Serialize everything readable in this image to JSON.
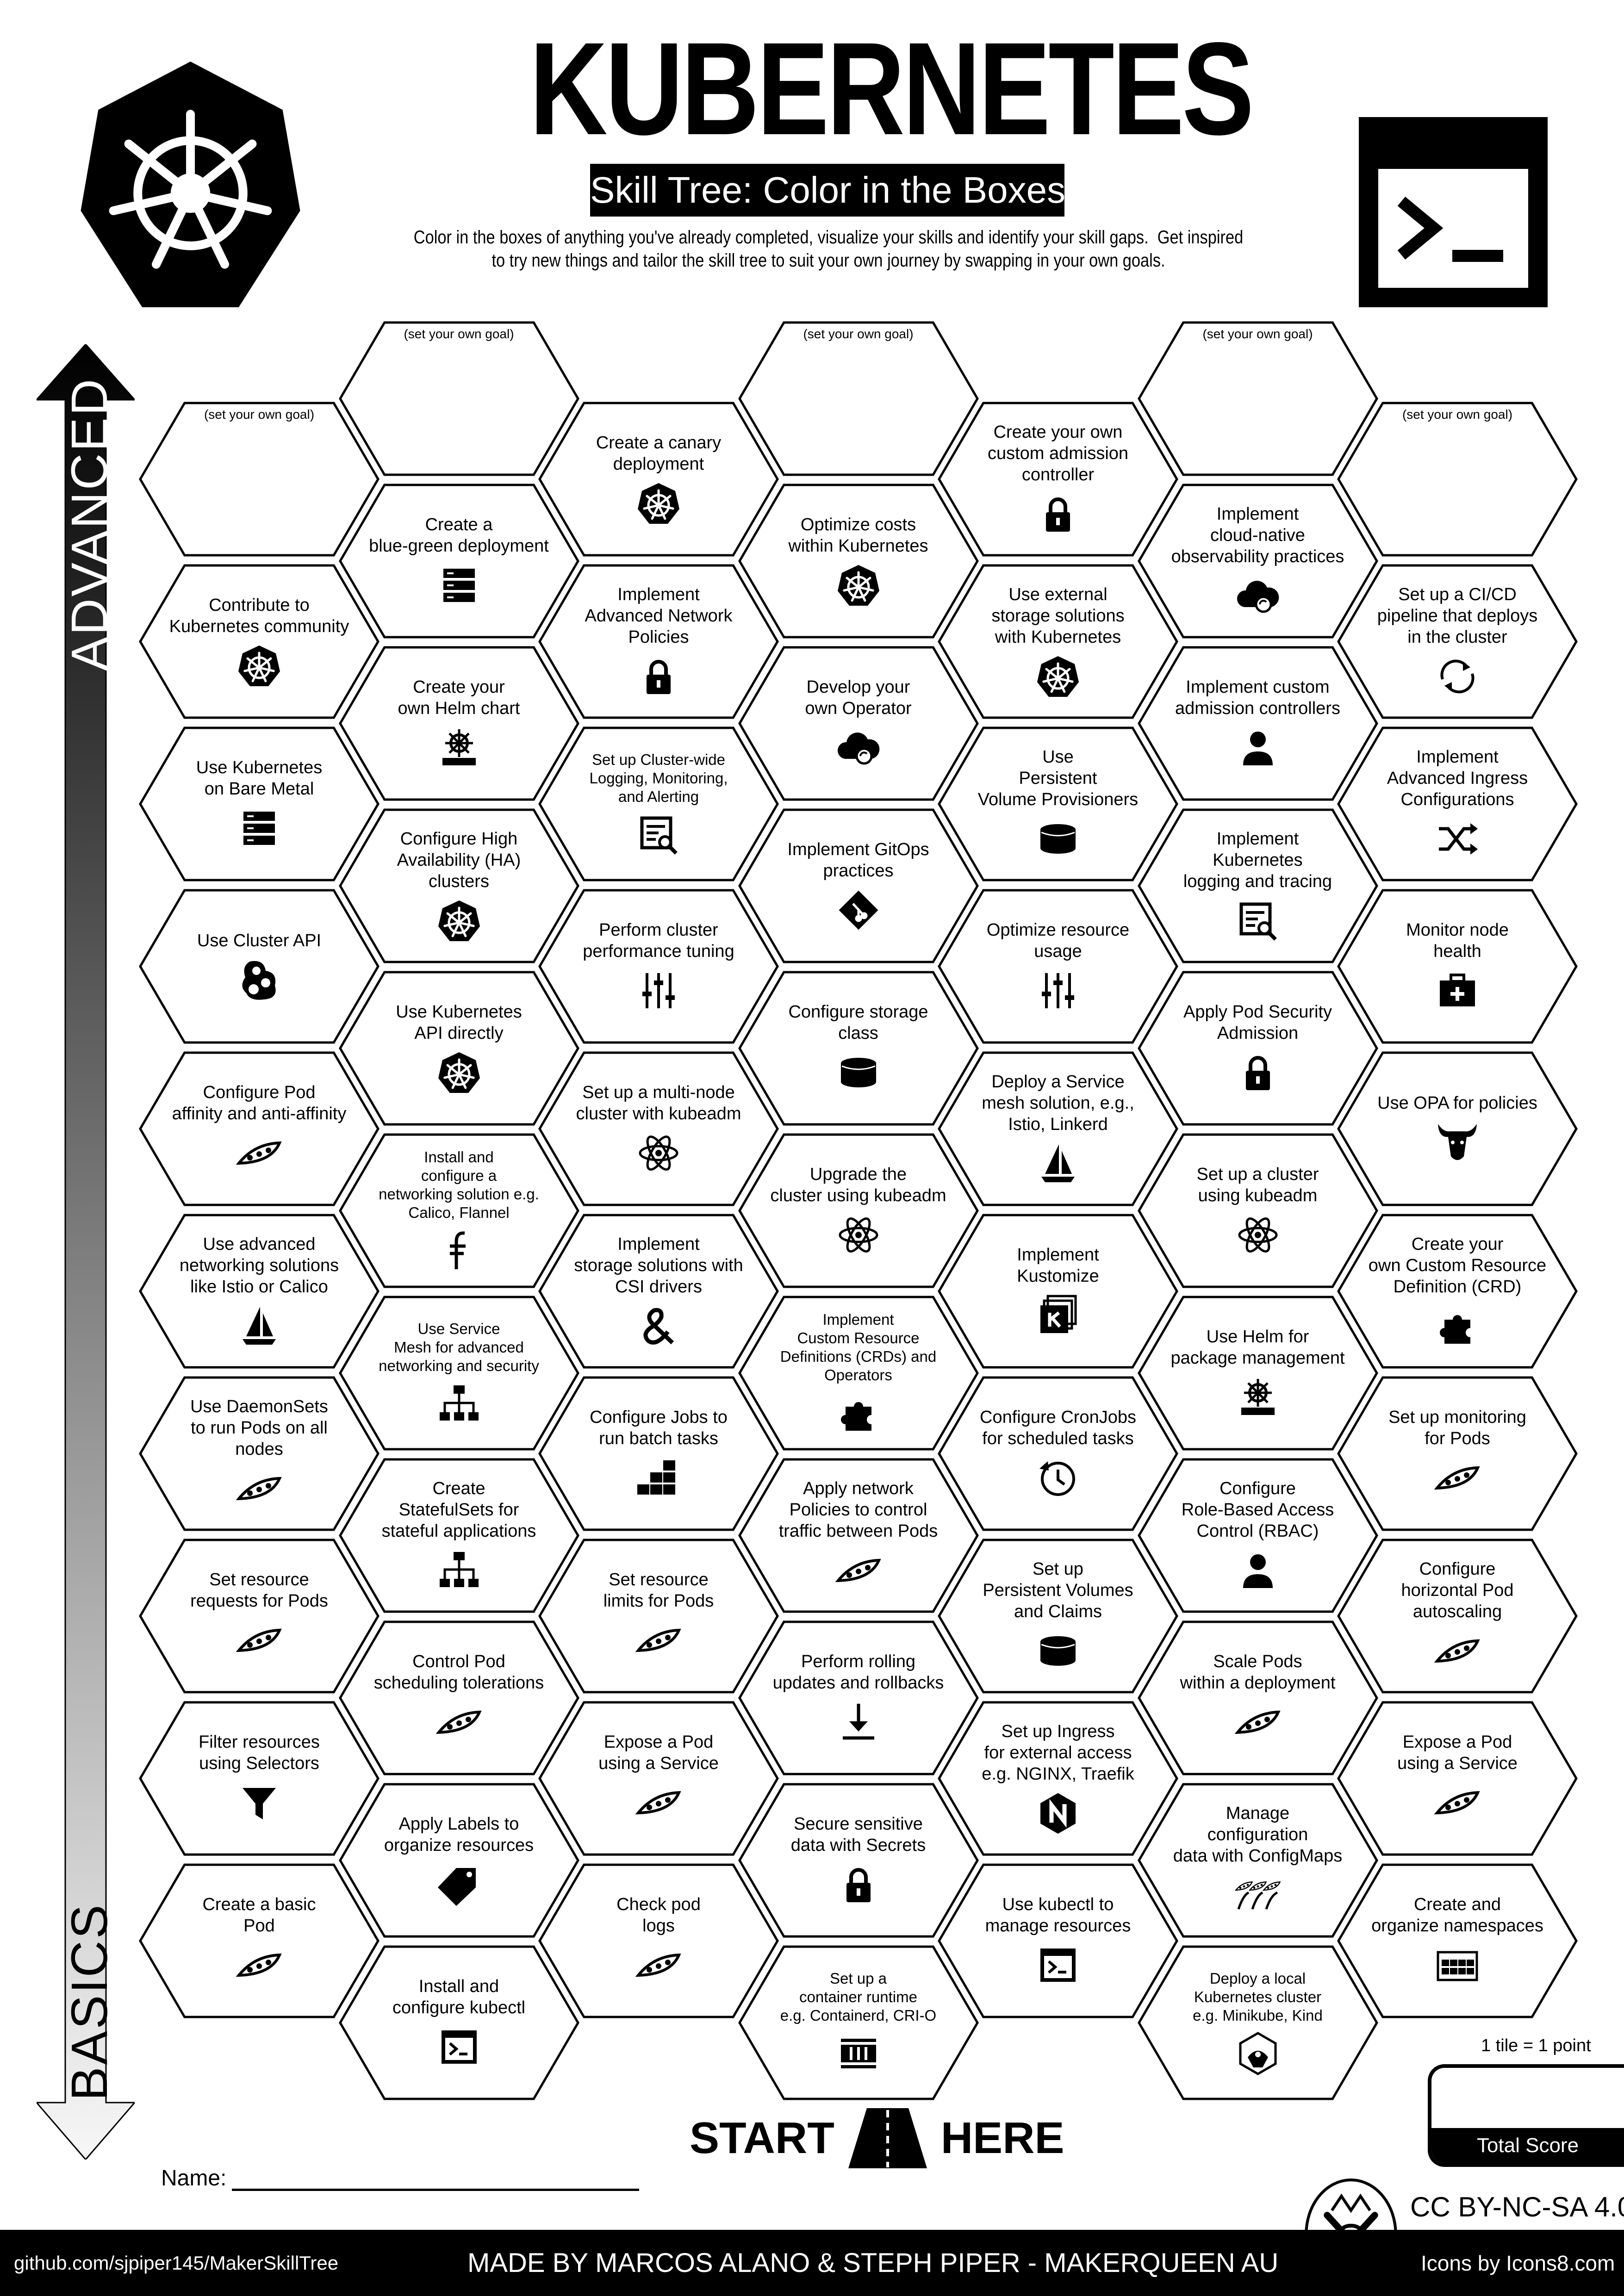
{
  "header": {
    "title": "KUBERNETES",
    "subtitle": "Skill Tree: Color in the Boxes",
    "description": "Color in the boxes of anything you've already completed, visualize your skills and identify your skill gaps.  Get inspired\nto try new things and tailor the skill tree to suit your own journey by swapping in your own goals.",
    "logo_icon": "kubernetes-helm-wheel-icon",
    "terminal_icon": "terminal-icon"
  },
  "axis": {
    "top_label": "ADVANCED",
    "bottom_label": "BASICS"
  },
  "goal_label": "(set your own goal)",
  "columns": [
    {
      "items": [
        {
          "goal": true,
          "label": "(set your own goal)"
        },
        {
          "label": "Contribute to\nKubernetes community",
          "icon": "kubernetes"
        },
        {
          "label": "Use Kubernetes\non Bare Metal",
          "icon": "server"
        },
        {
          "label": "Use Cluster API",
          "icon": "cluster-api"
        },
        {
          "label": "Configure Pod\naffinity and anti-affinity",
          "icon": "pea-pod"
        },
        {
          "label": "Use advanced\nnetworking solutions\nlike Istio or Calico",
          "icon": "sailboat"
        },
        {
          "label": "Use DaemonSets\nto run Pods on all\nnodes",
          "icon": "pea-pod"
        },
        {
          "label": "Set resource\nrequests for Pods",
          "icon": "pea-pod"
        },
        {
          "label": "Filter resources\nusing Selectors",
          "icon": "funnel"
        },
        {
          "label": "Create a basic\nPod",
          "icon": "pea-pod"
        }
      ]
    },
    {
      "items": [
        {
          "goal": true,
          "label": "(set your own goal)"
        },
        {
          "label": "Create a\nblue-green deployment",
          "icon": "server"
        },
        {
          "label": "Create your\nown Helm chart",
          "icon": "helm"
        },
        {
          "label": "Configure High\nAvailability (HA) clusters",
          "icon": "kubernetes"
        },
        {
          "label": "Use Kubernetes\nAPI directly",
          "icon": "kubernetes"
        },
        {
          "label": "Install and\nconfigure a\nnetworking solution e.g.\nCalico, Flannel",
          "icon": "flannel",
          "small": true
        },
        {
          "label": "Use Service\nMesh for advanced\nnetworking and security",
          "icon": "network",
          "small": true
        },
        {
          "label": "Create\nStatefulSets for\nstateful applications",
          "icon": "network"
        },
        {
          "label": "Control Pod\nscheduling tolerations",
          "icon": "pea-pod"
        },
        {
          "label": "Apply Labels to\norganize resources",
          "icon": "tag"
        },
        {
          "label": "Install and\nconfigure kubectl",
          "icon": "console"
        }
      ]
    },
    {
      "items": [
        {
          "label": "Create a canary\ndeployment",
          "icon": "kubernetes"
        },
        {
          "label": "Implement\nAdvanced Network\nPolicies",
          "icon": "lock"
        },
        {
          "label": "Set up Cluster-wide\nLogging, Monitoring,\nand Alerting",
          "icon": "report",
          "small": true
        },
        {
          "label": "Perform cluster\nperformance tuning",
          "icon": "sliders"
        },
        {
          "label": "Set up a multi-node\ncluster with kubeadm",
          "icon": "atom"
        },
        {
          "label": "Implement\nstorage solutions with\nCSI drivers",
          "icon": "ampersand"
        },
        {
          "label": "Configure Jobs to\nrun batch tasks",
          "icon": "blocks"
        },
        {
          "label": "Set resource\nlimits for Pods",
          "icon": "pea-pod"
        },
        {
          "label": "Expose a Pod\nusing a Service",
          "icon": "pea-pod"
        },
        {
          "label": "Check pod\nlogs",
          "icon": "pea-pod"
        }
      ]
    },
    {
      "items": [
        {
          "goal": true,
          "label": "(set your own goal)"
        },
        {
          "label": "Optimize costs\nwithin Kubernetes",
          "icon": "kubernetes"
        },
        {
          "label": "Develop your\nown Operator",
          "icon": "cloud-sync"
        },
        {
          "label": "Implement GitOps\npractices",
          "icon": "git"
        },
        {
          "label": "Configure storage\nclass",
          "icon": "database"
        },
        {
          "label": "Upgrade the\ncluster using kubeadm",
          "icon": "atom"
        },
        {
          "label": "Implement\nCustom Resource\nDefinitions (CRDs) and\nOperators",
          "icon": "puzzle",
          "small": true
        },
        {
          "label": "Apply network\nPolicies to control\ntraffic between Pods",
          "icon": "pea-pod"
        },
        {
          "label": "Perform rolling\nupdates and rollbacks",
          "icon": "download"
        },
        {
          "label": "Secure sensitive\ndata with Secrets",
          "icon": "lock"
        },
        {
          "label": "Set up a\ncontainer runtime\ne.g. Containerd, CRI-O",
          "icon": "container",
          "small": true
        }
      ]
    },
    {
      "items": [
        {
          "label": "Create your own\ncustom admission\ncontroller",
          "icon": "lock"
        },
        {
          "label": "Use external\nstorage solutions\nwith Kubernetes",
          "icon": "kubernetes"
        },
        {
          "label": "Use\nPersistent\nVolume Provisioners",
          "icon": "database"
        },
        {
          "label": "Optimize resource\nusage",
          "icon": "sliders"
        },
        {
          "label": "Deploy a Service\nmesh solution, e.g.,\nIstio, Linkerd",
          "icon": "sailboat"
        },
        {
          "label": "Implement\nKustomize",
          "icon": "kustomize"
        },
        {
          "label": "Configure CronJobs\nfor scheduled tasks",
          "icon": "clock"
        },
        {
          "label": "Set up\nPersistent Volumes\nand Claims",
          "icon": "database"
        },
        {
          "label": "Set up Ingress\nfor external access\ne.g. NGINX, Traefik",
          "icon": "nginx"
        },
        {
          "label": "Use kubectl to\nmanage resources",
          "icon": "console"
        }
      ]
    },
    {
      "items": [
        {
          "goal": true,
          "label": "(set your own goal)"
        },
        {
          "label": "Implement\ncloud-native\nobservability practices",
          "icon": "cloud-sync"
        },
        {
          "label": "Implement custom\nadmission controllers",
          "icon": "person"
        },
        {
          "label": "Implement\nKubernetes\nlogging and tracing",
          "icon": "report"
        },
        {
          "label": "Apply Pod Security\nAdmission",
          "icon": "lock"
        },
        {
          "label": "Set up a cluster\nusing kubeadm",
          "icon": "atom"
        },
        {
          "label": "Use Helm for\npackage management",
          "icon": "helm"
        },
        {
          "label": "Configure\nRole-Based Access\nControl (RBAC)",
          "icon": "person"
        },
        {
          "label": "Scale Pods\nwithin a deployment",
          "icon": "pea-pod"
        },
        {
          "label": "Manage\nconfiguration\ndata with ConfigMaps",
          "icon": "pea-pods"
        },
        {
          "label": "Deploy a local\nKubernetes cluster\ne.g. Minikube, Kind",
          "icon": "minikube",
          "small": true
        }
      ]
    },
    {
      "items": [
        {
          "goal": true,
          "label": "(set your own goal)"
        },
        {
          "label": "Set up a CI/CD\npipeline that deploys\nin the cluster",
          "icon": "sync"
        },
        {
          "label": "Implement\nAdvanced Ingress\nConfigurations",
          "icon": "shuffle"
        },
        {
          "label": "Monitor node\nhealth",
          "icon": "medkit"
        },
        {
          "label": "Use OPA for policies",
          "icon": "bull"
        },
        {
          "label": "Create your\nown Custom Resource\nDefinition (CRD)",
          "icon": "puzzle"
        },
        {
          "label": "Set up monitoring\nfor Pods",
          "icon": "pea-pod"
        },
        {
          "label": "Configure\nhorizontal Pod\nautoscaling",
          "icon": "pea-pod"
        },
        {
          "label": "Expose a Pod\nusing a Service",
          "icon": "pea-pod"
        },
        {
          "label": "Create and\norganize namespaces",
          "icon": "grid"
        }
      ]
    }
  ],
  "start": {
    "left": "START",
    "right": "HERE",
    "icon": "road-icon"
  },
  "name_label": "Name:",
  "score": {
    "note": "1 tile = 1 point",
    "label": "Total Score"
  },
  "license": "CC BY-NC-SA 4.0",
  "footer": {
    "github": "github.com/sjpiper145/MakerSkillTree",
    "credits": "MADE BY MARCOS ALANO & STEPH PIPER  -  MAKERQUEEN AU",
    "icons_credit": "Icons by Icons8.com",
    "maker_logo": "maker-tools-logo-icon"
  }
}
